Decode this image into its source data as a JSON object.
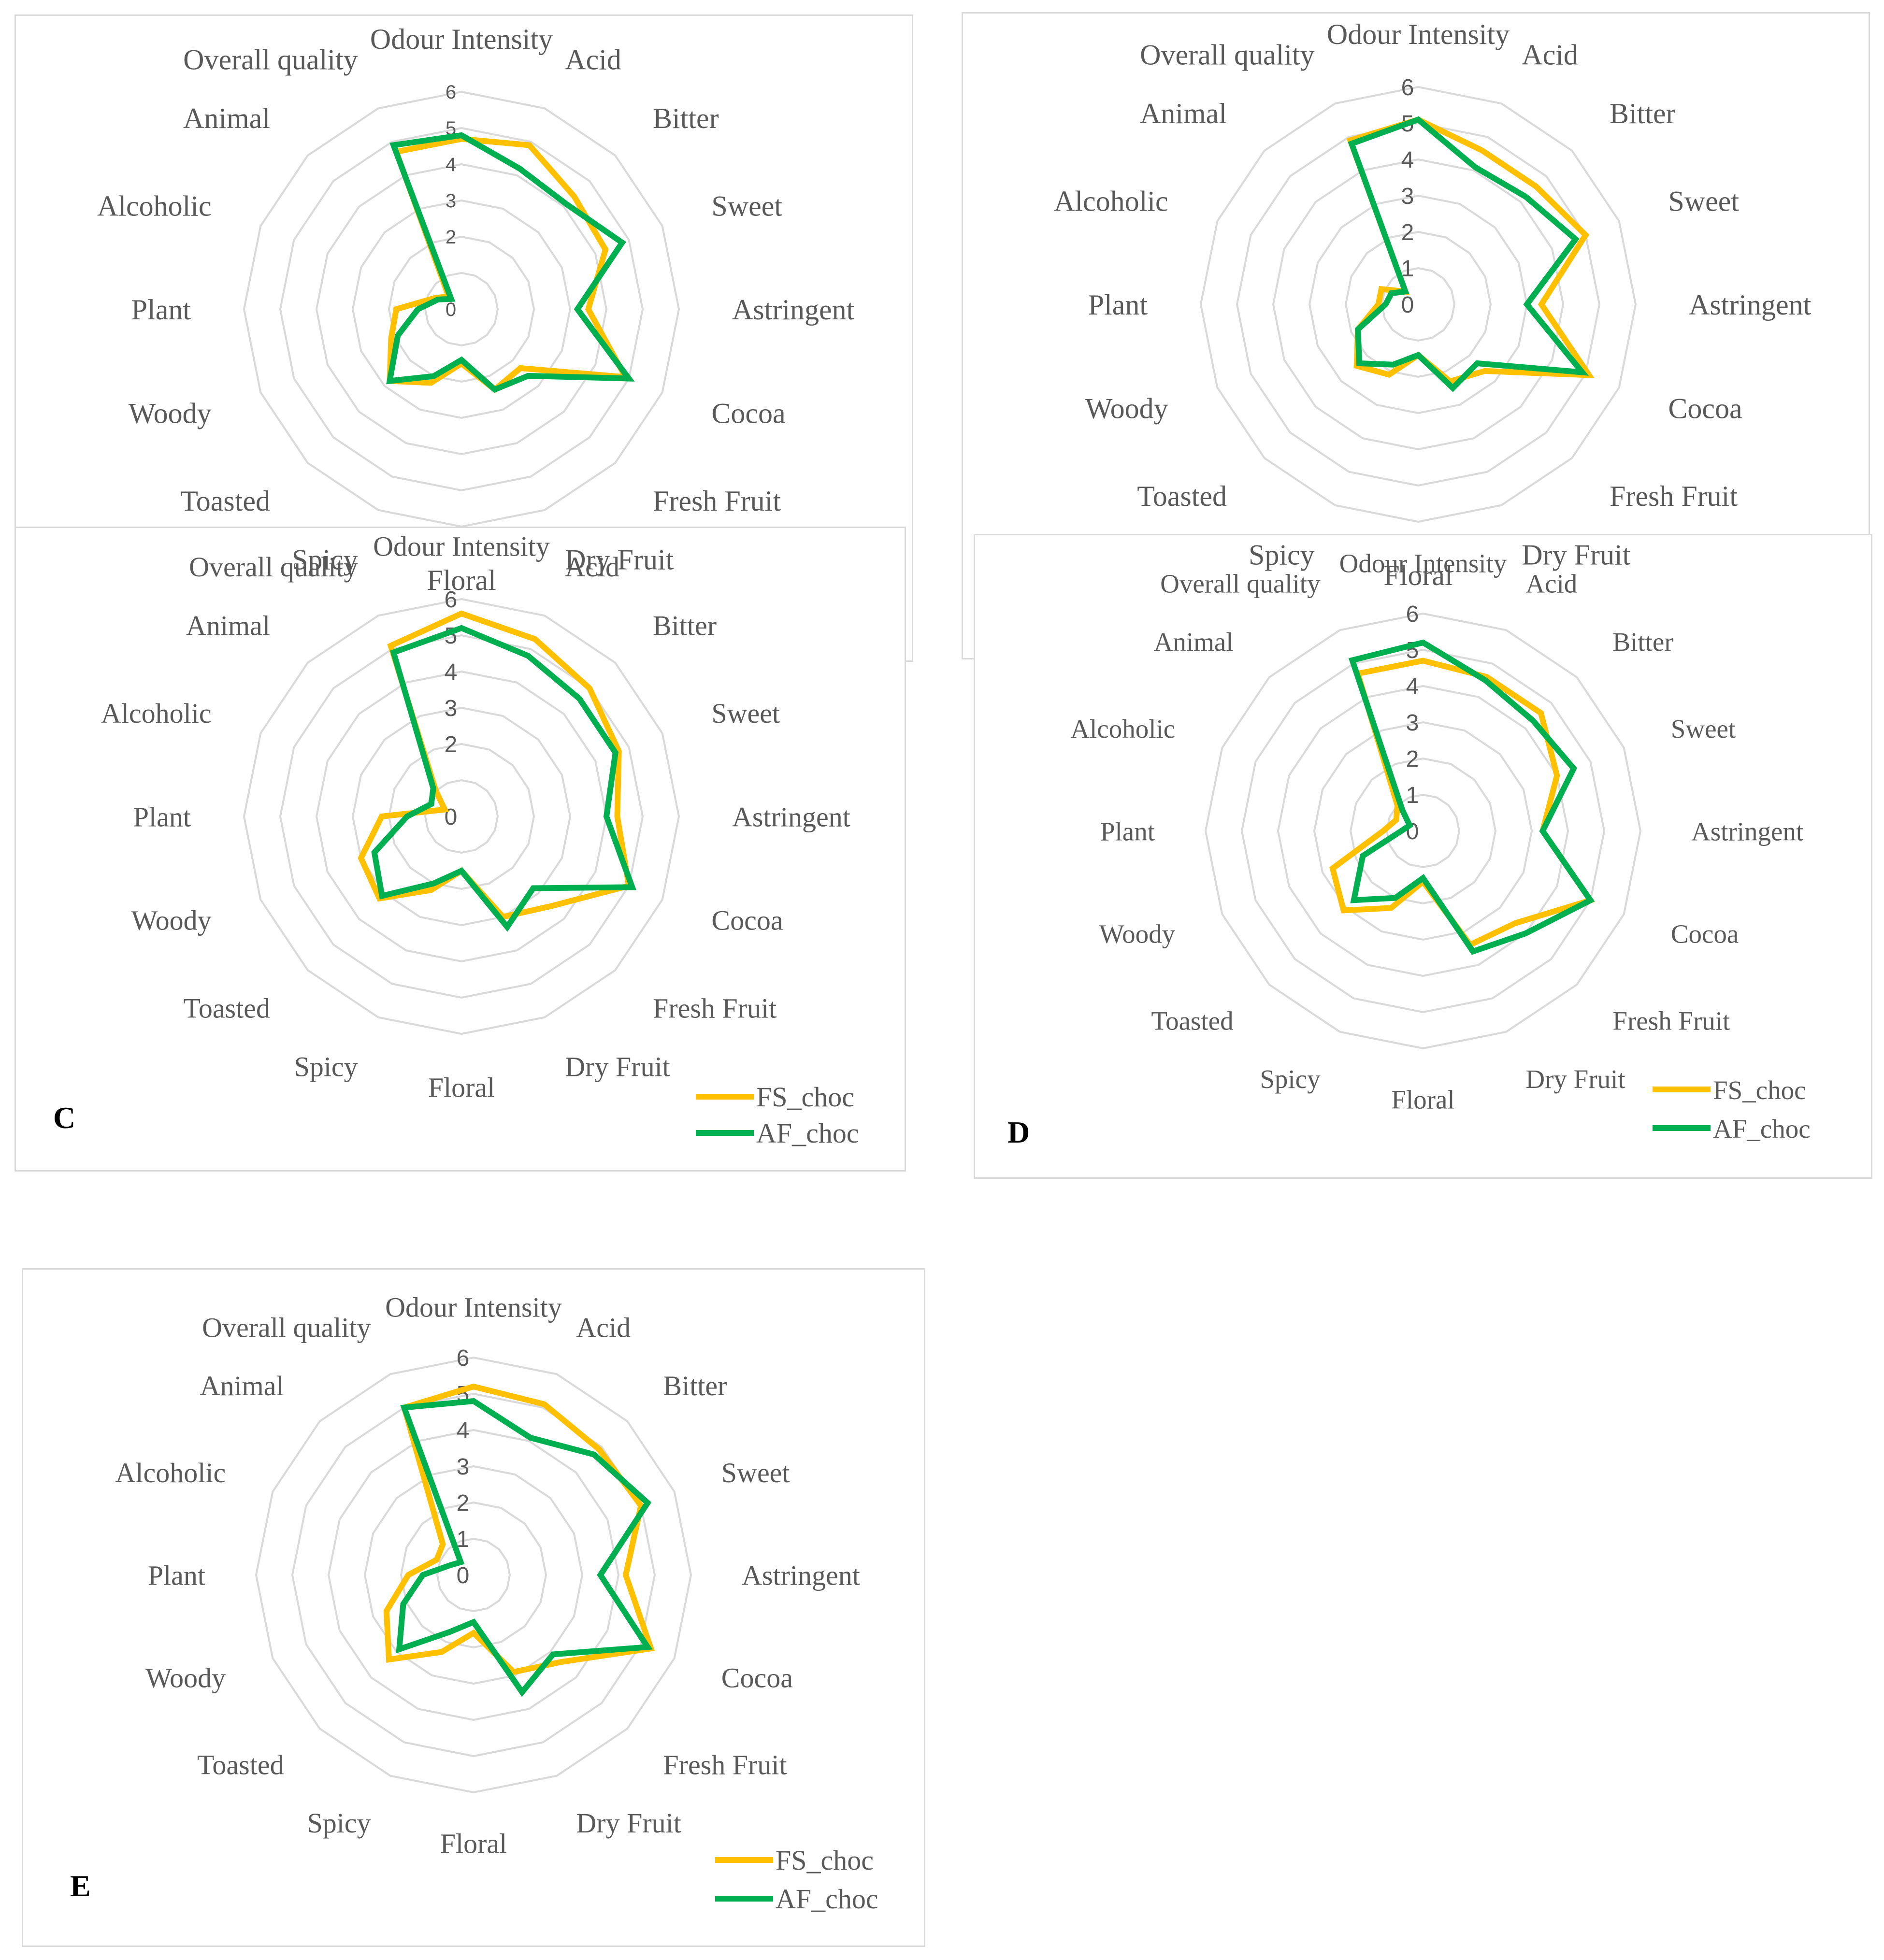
{
  "figure": {
    "axes": [
      "Odour Intensity",
      "Acid",
      "Bitter",
      "Sweet",
      "Astringent",
      "Cocoa",
      "Fresh Fruit",
      "Dry Fruit",
      "Floral",
      "Spicy",
      "Toasted",
      "Woody",
      "Plant",
      "Alcoholic",
      "Animal",
      "Overall quality"
    ],
    "colors": {
      "FS_choc": "#FFC000",
      "AF_choc": "#00B050",
      "grid": "#d9d9d9",
      "text": "#595959"
    },
    "legend_entries": [
      "FS_choc",
      "AF_choc"
    ]
  },
  "chart_data": [
    {
      "type": "radar",
      "panel_label": "",
      "tick_labels": [
        "0",
        "2",
        "3",
        "4",
        "5",
        "6"
      ],
      "rlim": [
        0,
        6
      ],
      "series": [
        {
          "name": "FS_choc",
          "values": [
            4.7,
            4.9,
            4.4,
            4.3,
            3.5,
            4.9,
            2.3,
            2.4,
            1.5,
            2.2,
            2.8,
            2.1,
            1.8,
            0.8,
            0.5,
            4.7
          ]
        },
        {
          "name": "AF_choc",
          "values": [
            4.8,
            4.2,
            4.1,
            4.8,
            3.2,
            5.0,
            2.6,
            2.4,
            1.4,
            2.0,
            2.8,
            1.9,
            1.2,
            0.7,
            0.4,
            4.9
          ]
        }
      ],
      "legend": "none"
    },
    {
      "type": "radar",
      "panel_label": "",
      "tick_labels": [
        "0",
        "1",
        "2",
        "3",
        "4",
        "5",
        "6"
      ],
      "rlim": [
        0,
        6
      ],
      "series": [
        {
          "name": "FS_choc",
          "values": [
            5.1,
            4.6,
            4.6,
            5.0,
            3.4,
            5.1,
            2.6,
            2.3,
            1.4,
            2.1,
            2.4,
            1.8,
            1.1,
            1.1,
            0.5,
            4.9
          ]
        },
        {
          "name": "AF_choc",
          "values": [
            5.1,
            4.1,
            4.2,
            4.7,
            3.0,
            4.9,
            2.3,
            2.5,
            1.4,
            1.8,
            2.3,
            1.8,
            0.9,
            0.8,
            0.5,
            4.8
          ]
        }
      ],
      "legend": "none"
    },
    {
      "type": "radar",
      "panel_label": "C",
      "tick_labels": [
        "0",
        "2",
        "3",
        "4",
        "5",
        "6"
      ],
      "rlim": [
        0,
        6
      ],
      "series": [
        {
          "name": "FS_choc",
          "values": [
            5.6,
            5.3,
            5.0,
            4.7,
            4.3,
            5.0,
            3.5,
            3.0,
            1.5,
            2.2,
            3.2,
            3.0,
            2.2,
            0.5,
            1.0,
            5.1
          ]
        },
        {
          "name": "AF_choc",
          "values": [
            5.2,
            4.8,
            4.6,
            4.6,
            4.0,
            5.1,
            2.8,
            3.3,
            1.5,
            2.0,
            3.1,
            2.6,
            1.5,
            0.9,
            1.1,
            4.9
          ]
        }
      ],
      "legend": "bottom-right"
    },
    {
      "type": "radar",
      "panel_label": "D",
      "tick_labels": [
        "0",
        "1",
        "2",
        "3",
        "4",
        "5",
        "6"
      ],
      "rlim": [
        0,
        6
      ],
      "series": [
        {
          "name": "FS_choc",
          "values": [
            4.7,
            4.6,
            4.6,
            4.0,
            3.3,
            5.0,
            3.6,
            3.4,
            1.4,
            2.3,
            3.1,
            2.7,
            1.1,
            0.8,
            1.0,
            4.7
          ]
        },
        {
          "name": "AF_choc",
          "values": [
            5.2,
            4.5,
            4.3,
            4.5,
            3.3,
            5.0,
            4.0,
            3.6,
            1.3,
            2.0,
            2.7,
            1.8,
            0.6,
            0.4,
            0.8,
            5.1
          ]
        }
      ],
      "legend": "bottom-right"
    },
    {
      "type": "radar",
      "panel_label": "E",
      "tick_labels": [
        "0",
        "1",
        "2",
        "3",
        "4",
        "5",
        "6"
      ],
      "rlim": [
        0,
        6
      ],
      "series": [
        {
          "name": "FS_choc",
          "values": [
            5.2,
            5.1,
            4.9,
            5.0,
            4.2,
            5.3,
            3.4,
            2.9,
            1.6,
            2.3,
            3.3,
            2.6,
            1.8,
            1.1,
            1.2,
            5.0
          ]
        },
        {
          "name": "AF_choc",
          "values": [
            4.8,
            4.1,
            4.7,
            5.2,
            3.5,
            5.2,
            3.1,
            3.5,
            1.3,
            1.7,
            2.9,
            2.1,
            1.4,
            0.7,
            0.5,
            5.0
          ]
        }
      ],
      "legend": "bottom-right"
    }
  ]
}
